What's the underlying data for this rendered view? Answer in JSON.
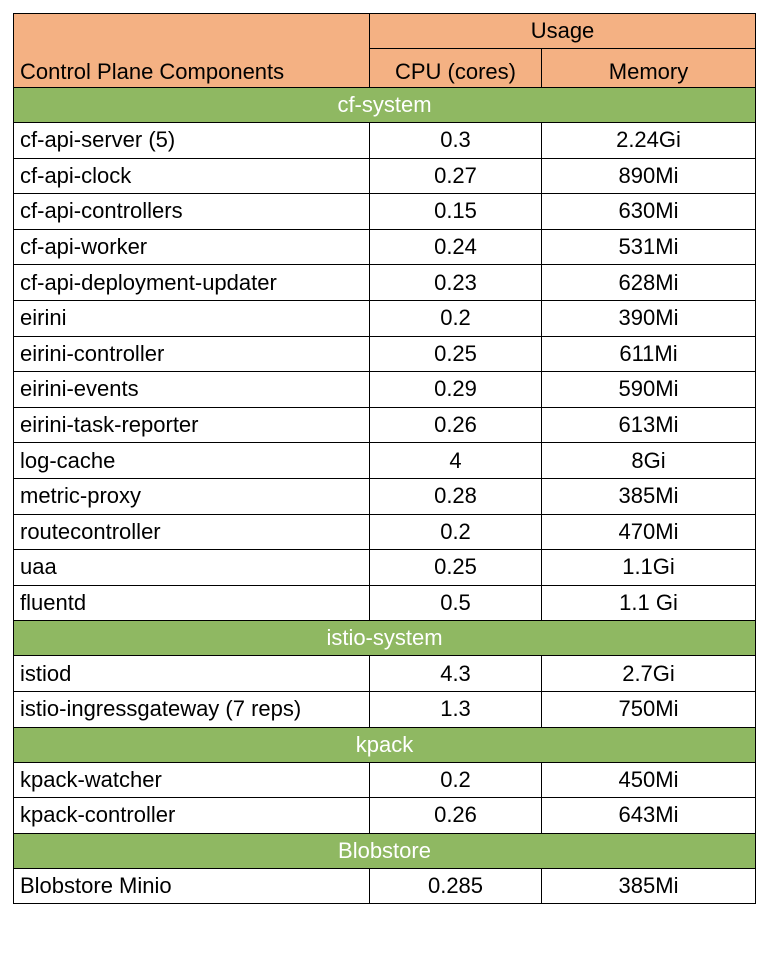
{
  "header": {
    "usage_label": "Usage",
    "component_label": "Control Plane  Components",
    "cpu_label": "CPU (cores)",
    "memory_label": "Memory"
  },
  "groups": [
    {
      "name": "cf-system",
      "rows": [
        {
          "component": "cf-api-server (5)",
          "cpu": "0.3",
          "memory": "2.24Gi"
        },
        {
          "component": "cf-api-clock",
          "cpu": "0.27",
          "memory": "890Mi"
        },
        {
          "component": "cf-api-controllers",
          "cpu": "0.15",
          "memory": "630Mi"
        },
        {
          "component": "cf-api-worker",
          "cpu": "0.24",
          "memory": "531Mi"
        },
        {
          "component": "cf-api-deployment-updater",
          "cpu": "0.23",
          "memory": "628Mi"
        },
        {
          "component": "eirini",
          "cpu": "0.2",
          "memory": "390Mi"
        },
        {
          "component": "eirini-controller",
          "cpu": "0.25",
          "memory": "611Mi"
        },
        {
          "component": "eirini-events",
          "cpu": "0.29",
          "memory": "590Mi"
        },
        {
          "component": "eirini-task-reporter",
          "cpu": "0.26",
          "memory": "613Mi"
        },
        {
          "component": "log-cache",
          "cpu": "4",
          "memory": "8Gi"
        },
        {
          "component": "metric-proxy",
          "cpu": "0.28",
          "memory": "385Mi"
        },
        {
          "component": "routecontroller",
          "cpu": "0.2",
          "memory": "470Mi"
        },
        {
          "component": "uaa",
          "cpu": "0.25",
          "memory": "1.1Gi"
        },
        {
          "component": "fluentd",
          "cpu": "0.5",
          "memory": "1.1 Gi"
        }
      ]
    },
    {
      "name": "istio-system",
      "rows": [
        {
          "component": "istiod",
          "cpu": "4.3",
          "memory": "2.7Gi"
        },
        {
          "component": "istio-ingressgateway (7 reps)",
          "cpu": "1.3",
          "memory": "750Mi"
        }
      ]
    },
    {
      "name": "kpack",
      "rows": [
        {
          "component": "kpack-watcher",
          "cpu": "0.2",
          "memory": "450Mi"
        },
        {
          "component": "kpack-controller",
          "cpu": "0.26",
          "memory": "643Mi"
        }
      ]
    },
    {
      "name": "Blobstore",
      "rows": [
        {
          "component": "Blobstore Minio",
          "cpu": "0.285",
          "memory": "385Mi"
        }
      ]
    }
  ],
  "colors": {
    "header_bg": "#f4b183",
    "group_bg": "#8fb862",
    "group_text": "#ffffff"
  }
}
